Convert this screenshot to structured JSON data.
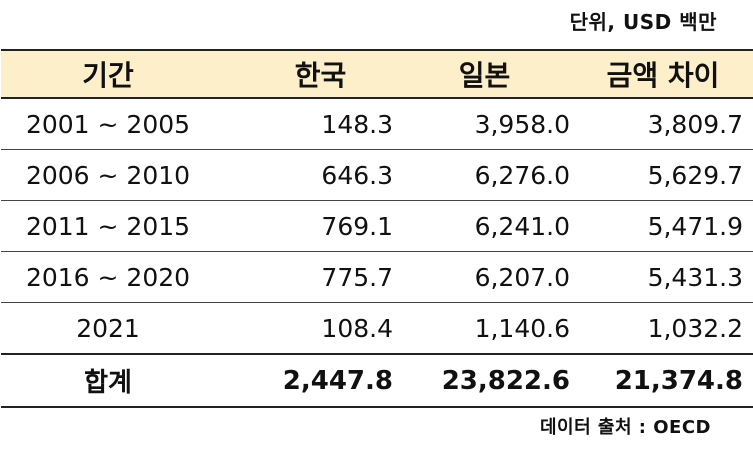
{
  "unit_label": "단위, USD 백만",
  "headers": [
    "기간",
    "한국",
    "일본",
    "금액 차이"
  ],
  "rows": [
    [
      "2001 ~ 2005",
      "148.3",
      "3,958.0",
      "3,809.7"
    ],
    [
      "2006 ~ 2010",
      "646.3",
      "6,276.0",
      "5,629.7"
    ],
    [
      "2011 ~ 2015",
      "769.1",
      "6,241.0",
      "5,471.9"
    ],
    [
      "2016 ~ 2020",
      "775.7",
      "6,207.0",
      "5,431.3"
    ],
    [
      "2021",
      "108.4",
      "1,140.6",
      "1,032.2"
    ]
  ],
  "total": [
    "합계",
    "2,447.8",
    "23,822.6",
    "21,374.8"
  ],
  "source": "데이터 출처 : OECD"
}
